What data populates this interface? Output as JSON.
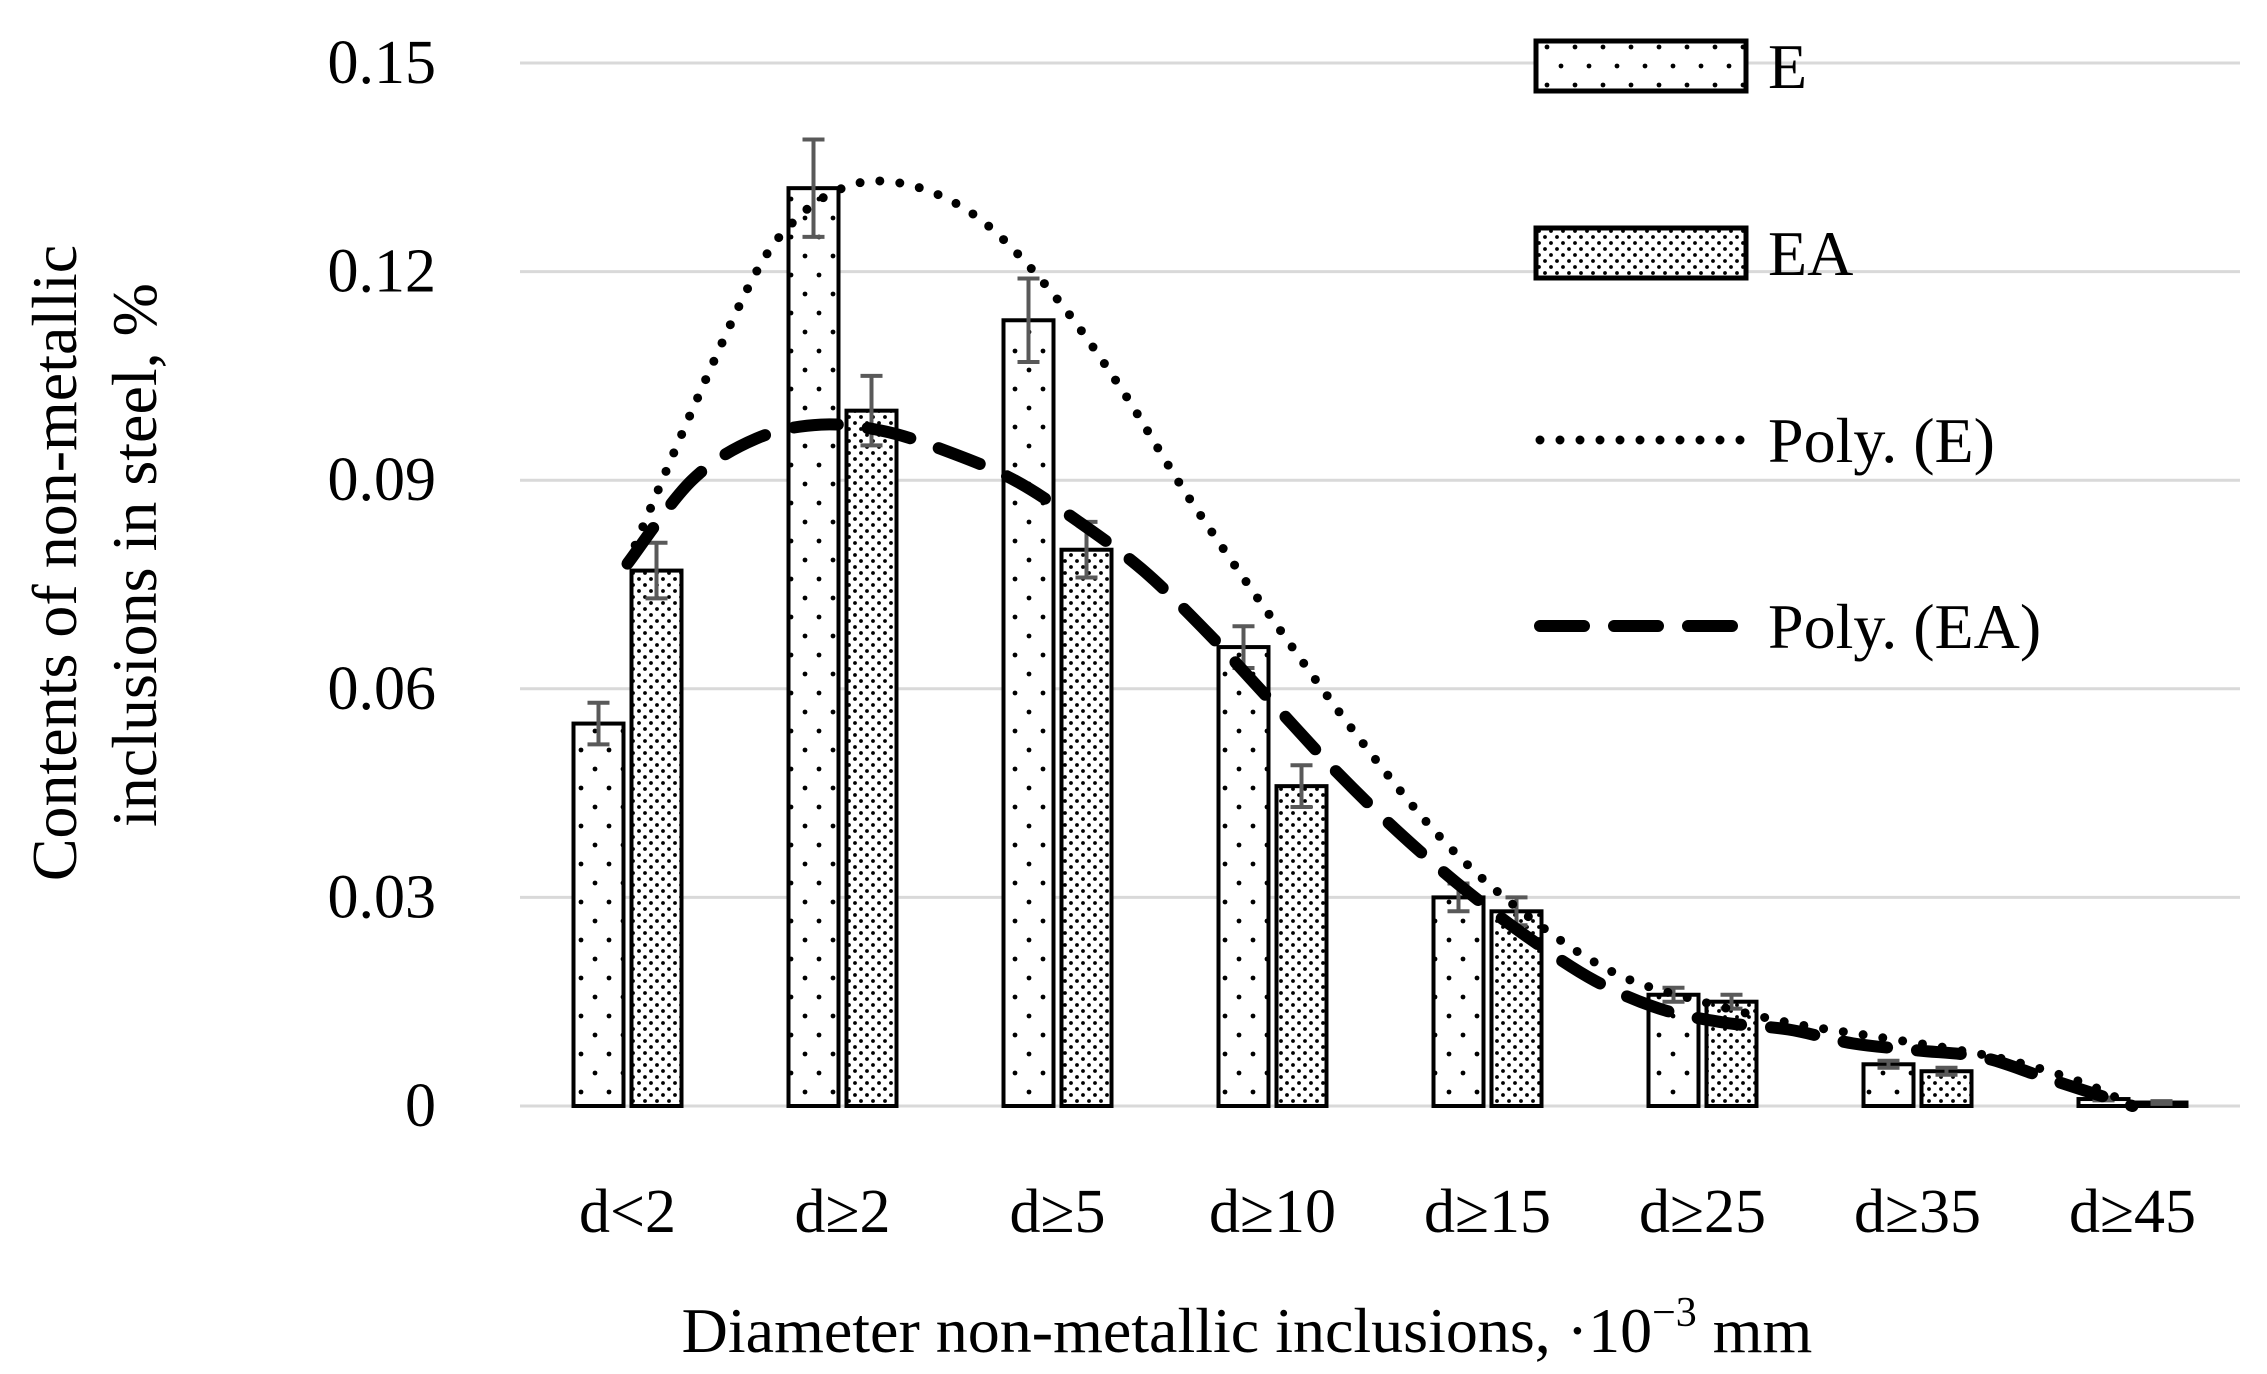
{
  "chart_data": {
    "type": "bar",
    "title": "",
    "xlabel": "Diameter non-metallic inclusions, ·10⁻³ mm",
    "xlabel_parts": {
      "prefix": "Diameter non-metallic inclusions, ·10",
      "sup": "−3",
      "suffix": " mm"
    },
    "ylabel_lines": [
      "Contents of non-metallic",
      "inclusions in steel, %"
    ],
    "categories": [
      "d<2",
      "d≥2",
      "d≥5",
      "d≥10",
      "d≥15",
      "d≥25",
      "d≥35",
      "d≥45"
    ],
    "ylim": [
      0,
      0.15
    ],
    "yticks": [
      0,
      0.03,
      0.06,
      0.09,
      0.12,
      0.15
    ],
    "ytick_labels": [
      "0",
      "0.03",
      "0.06",
      "0.09",
      "0.12",
      "0.15"
    ],
    "grid": true,
    "series": [
      {
        "name": "E",
        "pattern": "sparse-dots",
        "values": [
          0.055,
          0.132,
          0.113,
          0.066,
          0.03,
          0.016,
          0.006,
          0.001
        ],
        "errors": [
          0.003,
          0.007,
          0.006,
          0.003,
          0.002,
          0.001,
          0.0005,
          0.0002
        ]
      },
      {
        "name": "EA",
        "pattern": "dense-dots",
        "values": [
          0.077,
          0.1,
          0.08,
          0.046,
          0.028,
          0.015,
          0.005,
          0.0005
        ],
        "errors": [
          0.004,
          0.005,
          0.004,
          0.003,
          0.002,
          0.001,
          0.0005,
          0.0002
        ]
      }
    ],
    "trendlines": [
      {
        "name": "Poly. (E)",
        "of_series": "E",
        "style": "dotted",
        "points": [
          [
            0,
            0.078
          ],
          [
            0.3,
            0.1
          ],
          [
            0.6,
            0.12
          ],
          [
            0.8,
            0.128
          ],
          [
            1.0,
            0.132
          ],
          [
            1.2,
            0.133
          ],
          [
            1.45,
            0.131
          ],
          [
            1.7,
            0.126
          ],
          [
            2.0,
            0.116
          ],
          [
            2.3,
            0.103
          ],
          [
            2.6,
            0.088
          ],
          [
            3.0,
            0.07
          ],
          [
            3.4,
            0.053
          ],
          [
            3.8,
            0.038
          ],
          [
            4.2,
            0.027
          ],
          [
            4.6,
            0.019
          ],
          [
            5.0,
            0.015
          ],
          [
            5.4,
            0.012
          ],
          [
            5.8,
            0.01
          ],
          [
            6.2,
            0.008
          ],
          [
            6.5,
            0.006
          ],
          [
            6.8,
            0.003
          ],
          [
            7.0,
            0.0
          ]
        ]
      },
      {
        "name": "Poly. (EA)",
        "of_series": "EA",
        "style": "dashed",
        "points": [
          [
            0,
            0.078
          ],
          [
            0.3,
            0.09
          ],
          [
            0.6,
            0.096
          ],
          [
            0.9,
            0.098
          ],
          [
            1.2,
            0.097
          ],
          [
            1.5,
            0.094
          ],
          [
            1.8,
            0.09
          ],
          [
            2.1,
            0.084
          ],
          [
            2.4,
            0.077
          ],
          [
            2.7,
            0.068
          ],
          [
            3.0,
            0.058
          ],
          [
            3.3,
            0.048
          ],
          [
            3.6,
            0.039
          ],
          [
            3.9,
            0.031
          ],
          [
            4.2,
            0.024
          ],
          [
            4.5,
            0.018
          ],
          [
            4.8,
            0.014
          ],
          [
            5.1,
            0.012
          ],
          [
            5.4,
            0.011
          ],
          [
            5.7,
            0.009
          ],
          [
            6.0,
            0.008
          ],
          [
            6.3,
            0.007
          ],
          [
            6.6,
            0.004
          ],
          [
            7.0,
            0.0
          ]
        ]
      }
    ],
    "legend": {
      "position": "top-right",
      "entries": [
        {
          "label": "E",
          "kind": "bar",
          "series": "E"
        },
        {
          "label": "EA",
          "kind": "bar",
          "series": "EA"
        },
        {
          "label": "Poly. (E)",
          "kind": "line",
          "style": "dotted"
        },
        {
          "label": "Poly. (EA)",
          "kind": "line",
          "style": "dashed"
        }
      ]
    },
    "colors": {
      "bar_fill": "#ffffff",
      "bar_stroke": "#000000",
      "gridline": "#d9d9d9",
      "errorbar": "#595959",
      "line": "#000000"
    }
  }
}
